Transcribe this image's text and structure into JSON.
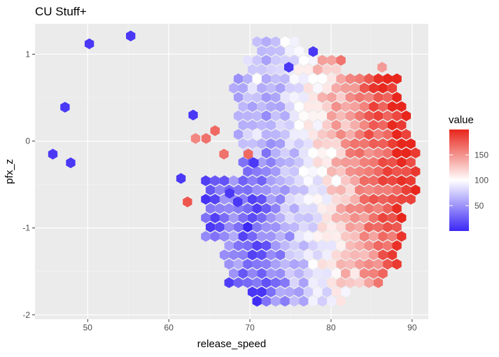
{
  "chart_data": {
    "type": "heatmap",
    "subtype": "hexbin",
    "title": "CU Stuff+",
    "xlabel": "release_speed",
    "ylabel": "pfx_z",
    "xlim": [
      43.5,
      92
    ],
    "ylim": [
      -2.05,
      1.35
    ],
    "x_ticks": [
      50,
      60,
      70,
      80,
      90
    ],
    "y_ticks": [
      -2,
      -1,
      0,
      1
    ],
    "x_tick_labels": [
      "50",
      "60",
      "70",
      "80",
      "90"
    ],
    "y_tick_labels": [
      "-2",
      "-1",
      "0",
      "1"
    ],
    "grid": true,
    "panel_background": "#ebebeb",
    "legend": {
      "title": "value",
      "position": "right",
      "breaks": [
        50,
        100,
        150
      ],
      "labels": [
        "50",
        "100",
        "150"
      ],
      "range": [
        0,
        200
      ],
      "colors": {
        "low": "#3b27f5",
        "mid": "#ffffff",
        "high": "#e8261c"
      },
      "midpoint": 100
    },
    "hexbin": {
      "x_range": [
        45,
        91
      ],
      "y_range": [
        -1.95,
        1.25
      ],
      "columns": 40,
      "rows": 30
    },
    "outlier_points": [
      {
        "x": 45.7,
        "y": -0.15,
        "value": 5
      },
      {
        "x": 47.9,
        "y": -0.25,
        "value": 5
      },
      {
        "x": 47.2,
        "y": 0.39,
        "value": 5
      },
      {
        "x": 50.2,
        "y": 1.12,
        "value": 5
      },
      {
        "x": 55.3,
        "y": 1.21,
        "value": 5
      },
      {
        "x": 63.0,
        "y": 0.3,
        "value": 5
      },
      {
        "x": 61.5,
        "y": -0.43,
        "value": 5
      },
      {
        "x": 77.8,
        "y": 1.03,
        "value": 5
      },
      {
        "x": 70.5,
        "y": -0.25,
        "value": 5
      },
      {
        "x": 68.5,
        "y": -0.7,
        "value": 5
      },
      {
        "x": 67.5,
        "y": -0.6,
        "value": 5
      },
      {
        "x": 74.8,
        "y": 0.85,
        "value": 5
      },
      {
        "x": 63.3,
        "y": 0.03,
        "value": 150
      },
      {
        "x": 64.6,
        "y": 0.03,
        "value": 160
      },
      {
        "x": 65.7,
        "y": 0.12,
        "value": 165
      },
      {
        "x": 66.8,
        "y": -0.15,
        "value": 160
      },
      {
        "x": 69.8,
        "y": -0.15,
        "value": 165
      },
      {
        "x": 62.3,
        "y": -0.7,
        "value": 175
      },
      {
        "x": 86.3,
        "y": 0.85,
        "value": 140
      }
    ]
  }
}
